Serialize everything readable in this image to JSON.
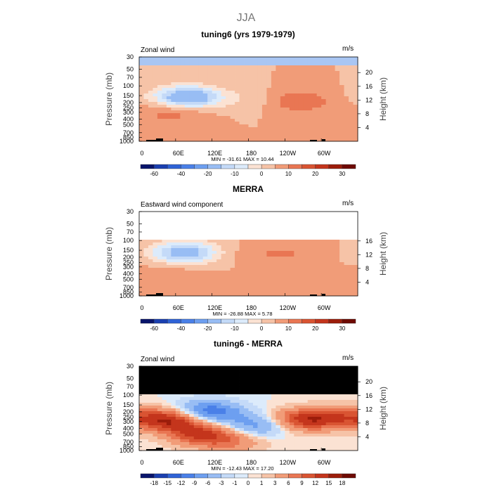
{
  "figure_title": "JJA",
  "chart_data": [
    {
      "type": "heatmap",
      "title": "tuning6 (yrs 1979-1979)",
      "left_label": "Zonal wind",
      "units": "m/s",
      "ylabel": "Pressure (mb)",
      "right_label": "Height (km)",
      "x_ticks": [
        "0",
        "60E",
        "120E",
        "180",
        "120W",
        "60W"
      ],
      "y_ticks": [
        "30",
        "50",
        "70",
        "100",
        "150",
        "200",
        "250",
        "300",
        "400",
        "500",
        "700",
        "850",
        "1000"
      ],
      "height_ticks": [
        "4",
        "8",
        "12",
        "16",
        "20"
      ],
      "stats": "MIN = -31.61   MAX =  10.44",
      "colorbar_labels": [
        "-60",
        "-40",
        "-20",
        "-10",
        "0",
        "10",
        "20",
        "30"
      ],
      "masked_above_mb": null,
      "features": [
        {
          "lon": 80,
          "p": 160,
          "value": -30
        },
        {
          "lon": 55,
          "p": 300,
          "value": 8
        },
        {
          "lon": 262,
          "p": 190,
          "value": 10
        },
        {
          "lon": 190,
          "p": 180,
          "value": -4
        }
      ]
    },
    {
      "type": "heatmap",
      "title": "MERRA",
      "left_label": "Eastward wind component",
      "units": "m/s",
      "ylabel": "Pressure (mb)",
      "right_label": "Height (km)",
      "x_ticks": [
        "0",
        "60E",
        "120E",
        "180",
        "120W",
        "60W"
      ],
      "y_ticks": [
        "30",
        "50",
        "70",
        "100",
        "150",
        "200",
        "250",
        "300",
        "400",
        "500",
        "700",
        "850",
        "1000"
      ],
      "height_ticks": [
        "4",
        "8",
        "12",
        "16"
      ],
      "stats": "MIN = -26.88   MAX =   5.78",
      "colorbar_labels": [
        "-60",
        "-40",
        "-20",
        "-10",
        "0",
        "10",
        "20",
        "30"
      ],
      "masked_above_mb": 100,
      "mask_style": "blank",
      "features": [
        {
          "lon": 75,
          "p": 165,
          "value": -25
        },
        {
          "lon": 50,
          "p": 420,
          "value": 4
        },
        {
          "lon": 200,
          "p": 180,
          "value": 3
        },
        {
          "lon": 250,
          "p": 170,
          "value": 4
        }
      ]
    },
    {
      "type": "heatmap",
      "title": "tuning6 - MERRA",
      "left_label": "Zonal wind",
      "units": "m/s",
      "ylabel": "Pressure (mb)",
      "right_label": "Height (km)",
      "x_ticks": [
        "0",
        "60E",
        "120E",
        "180",
        "120W",
        "60W"
      ],
      "y_ticks": [
        "30",
        "50",
        "70",
        "100",
        "150",
        "200",
        "250",
        "300",
        "400",
        "500",
        "700",
        "850",
        "1000"
      ],
      "height_ticks": [
        "4",
        "8",
        "12",
        "16",
        "20"
      ],
      "stats": "MIN = -12.43   MAX =  17.20",
      "colorbar_labels": [
        "-18",
        "-15",
        "-12",
        "-9",
        "-6",
        "-3",
        "-1",
        "0",
        "1",
        "3",
        "6",
        "9",
        "12",
        "15",
        "18"
      ],
      "masked_above_mb": 100,
      "mask_style": "black",
      "features": [
        {
          "lon": 50,
          "p": 280,
          "value": 15
        },
        {
          "lon": 100,
          "p": 500,
          "value": 12
        },
        {
          "lon": 150,
          "p": 700,
          "value": 6
        },
        {
          "lon": 115,
          "p": 200,
          "value": -12
        },
        {
          "lon": 195,
          "p": 350,
          "value": -8
        },
        {
          "lon": 270,
          "p": 280,
          "value": 13
        },
        {
          "lon": 330,
          "p": 250,
          "value": 8
        }
      ]
    }
  ],
  "colors": {
    "neg": [
      "#08146b",
      "#1a3fb0",
      "#2f63d6",
      "#4a80e8",
      "#6d9ff0",
      "#98bdf4",
      "#c4daf8",
      "#dcebfb"
    ],
    "pos": [
      "#fbe2d3",
      "#f6c3a7",
      "#f19c78",
      "#e97653",
      "#d95432",
      "#c4351c",
      "#9c1d0b",
      "#6e0a03"
    ],
    "mask": "#000000",
    "topbar": "#a9c6f3"
  }
}
